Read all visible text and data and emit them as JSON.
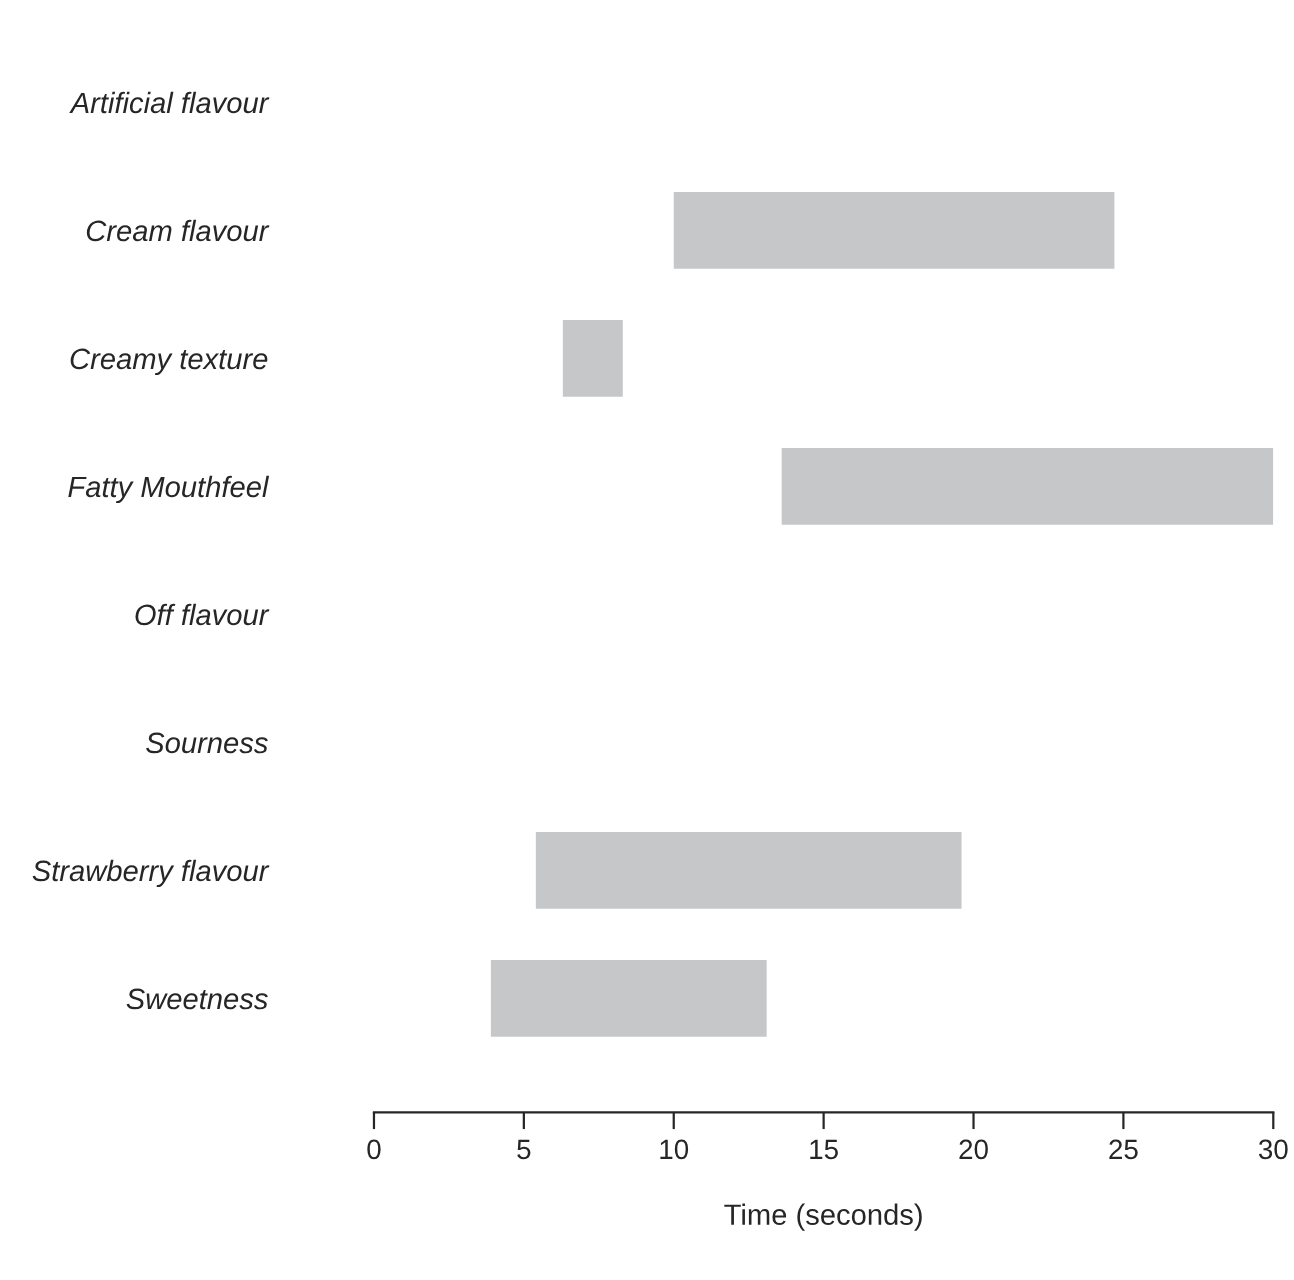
{
  "chart_data": {
    "type": "bar",
    "orientation": "horizontal",
    "xlabel": "Time (seconds)",
    "categories": [
      "Artificial flavour",
      "Cream flavour",
      "Creamy texture",
      "Fatty Mouthfeel",
      "Off flavour",
      "Sourness",
      "Strawberry flavour",
      "Sweetness"
    ],
    "base": [
      null,
      10.0,
      6.3,
      13.6,
      null,
      null,
      5.4,
      3.9
    ],
    "values": [
      null,
      14.7,
      2.0,
      16.4,
      null,
      null,
      14.2,
      9.2
    ],
    "color": "#c6c7c9",
    "xlim": [
      0,
      30
    ],
    "xticks": [
      0,
      5,
      10,
      15,
      20,
      25,
      30
    ],
    "grid": false,
    "legend": false
  }
}
